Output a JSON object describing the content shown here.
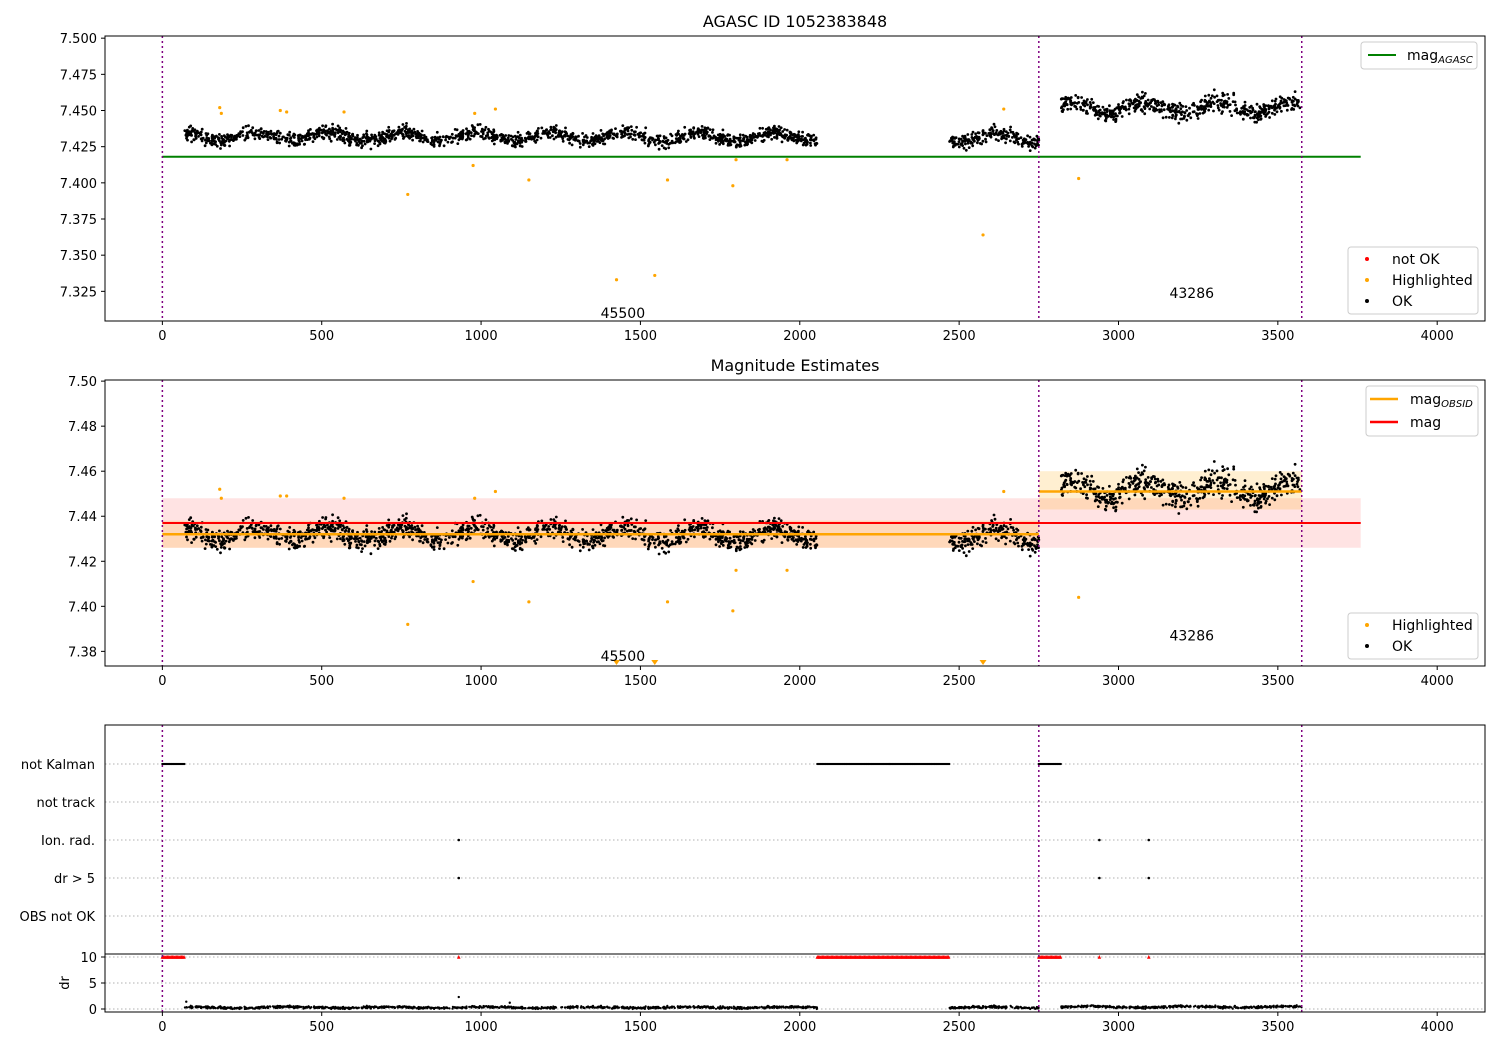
{
  "figure": {
    "colors": {
      "black": "#000000",
      "orange": "#ffa500",
      "red": "#ff0000",
      "green": "#008000",
      "purple": "#800080",
      "grid": "#b0b0b0"
    },
    "panels": [
      {
        "id": "agasc",
        "title": "AGASC ID 1052383848",
        "legend_top": [
          {
            "label": "mag",
            "sub": "AGASC",
            "color": "#008000"
          }
        ],
        "legend_bottom": [
          {
            "label": "not OK",
            "color": "#ff0000"
          },
          {
            "label": "Highlighted",
            "color": "#ffa500"
          },
          {
            "label": "OK",
            "color": "#000000"
          }
        ],
        "annotations": [
          {
            "text": "45500",
            "x": 1375,
            "y": 7.31
          },
          {
            "text": "43286",
            "x": 3160,
            "y": 7.324
          }
        ]
      },
      {
        "id": "estimates",
        "title": "Magnitude Estimates",
        "legend_top": [
          {
            "label": "mag",
            "sub": "OBSID",
            "color": "#ffa500"
          },
          {
            "label": "mag",
            "sub": "",
            "color": "#ff0000"
          }
        ],
        "legend_bottom": [
          {
            "label": "Highlighted",
            "color": "#ffa500"
          },
          {
            "label": "OK",
            "color": "#000000"
          }
        ],
        "annotations": [
          {
            "text": "45500",
            "x": 1375,
            "y": 7.378
          },
          {
            "text": "43286",
            "x": 3160,
            "y": 7.387
          }
        ]
      },
      {
        "id": "flags",
        "title": "",
        "flag_rows": [
          "not Kalman",
          "not track",
          "Ion. rad.",
          "dr > 5",
          "OBS not OK"
        ],
        "dr_label": "dr"
      }
    ]
  },
  "chart_data": [
    {
      "type": "scatter",
      "title": "AGASC ID 1052383848",
      "xlabel": "",
      "ylabel": "",
      "xlim": [
        -180,
        4150
      ],
      "ylim": [
        7.3045,
        7.5015
      ],
      "xticks": [
        0,
        500,
        1000,
        1500,
        2000,
        2500,
        3000,
        3500,
        4000
      ],
      "yticks": [
        7.325,
        7.35,
        7.375,
        7.4,
        7.425,
        7.45,
        7.475,
        7.5
      ],
      "vlines": [
        0,
        2750,
        3575
      ],
      "hlines": [
        {
          "name": "mag_AGASC",
          "y": 7.418,
          "x": [
            0,
            3760
          ]
        }
      ],
      "series": [
        {
          "name": "OK",
          "note": "dense point cloud; mean level per segment",
          "segments": [
            {
              "x": [
                70,
                2055
              ],
              "mean": 7.432,
              "spread": 0.006
            },
            {
              "x": [
                2470,
                2750
              ],
              "mean": 7.431,
              "spread": 0.006
            },
            {
              "x": [
                2820,
                3570
              ],
              "mean": 7.452,
              "spread": 0.008
            }
          ]
        },
        {
          "name": "Highlighted",
          "x": [
            180,
            185,
            370,
            390,
            570,
            770,
            975,
            980,
            1045,
            1150,
            1425,
            1545,
            1585,
            1790,
            1800,
            1960,
            2575,
            2640,
            2875
          ],
          "y": [
            7.452,
            7.448,
            7.45,
            7.449,
            7.449,
            7.392,
            7.412,
            7.448,
            7.451,
            7.402,
            7.333,
            7.336,
            7.402,
            7.398,
            7.416,
            7.416,
            7.364,
            7.451,
            7.403
          ]
        },
        {
          "name": "not OK",
          "x": [],
          "y": []
        }
      ]
    },
    {
      "type": "scatter",
      "title": "Magnitude Estimates",
      "xlabel": "",
      "ylabel": "",
      "xlim": [
        -180,
        4150
      ],
      "ylim": [
        7.3735,
        7.5005
      ],
      "xticks": [
        0,
        500,
        1000,
        1500,
        2000,
        2500,
        3000,
        3500,
        4000
      ],
      "yticks": [
        7.38,
        7.4,
        7.42,
        7.44,
        7.46,
        7.48,
        7.5
      ],
      "vlines": [
        0,
        2750,
        3575
      ],
      "lines": [
        {
          "name": "mag_OBSID",
          "color": "#ffa500",
          "segments": [
            {
              "x": [
                0,
                2750
              ],
              "y": 7.432,
              "band": [
                7.426,
                7.438
              ]
            },
            {
              "x": [
                2750,
                3575
              ],
              "y": 7.451,
              "band": [
                7.443,
                7.46
              ]
            }
          ]
        },
        {
          "name": "mag",
          "color": "#ff0000",
          "segments": [
            {
              "x": [
                0,
                3760
              ],
              "y": 7.437,
              "band": [
                7.426,
                7.448
              ]
            }
          ]
        }
      ],
      "series": [
        {
          "name": "OK",
          "note": "dense point cloud; mean level per segment",
          "segments": [
            {
              "x": [
                70,
                2055
              ],
              "mean": 7.432,
              "spread": 0.006
            },
            {
              "x": [
                2470,
                2750
              ],
              "mean": 7.431,
              "spread": 0.006
            },
            {
              "x": [
                2820,
                3570
              ],
              "mean": 7.452,
              "spread": 0.008
            }
          ]
        },
        {
          "name": "Highlighted",
          "x": [
            180,
            185,
            370,
            390,
            570,
            770,
            975,
            980,
            1045,
            1150,
            1585,
            1790,
            1800,
            1960,
            2640,
            2875
          ],
          "y": [
            7.452,
            7.448,
            7.449,
            7.449,
            7.448,
            7.392,
            7.411,
            7.448,
            7.451,
            7.402,
            7.402,
            7.398,
            7.416,
            7.416,
            7.451,
            7.404
          ]
        },
        {
          "name": "Highlighted (below range)",
          "x": [
            1425,
            1545,
            2575
          ]
        }
      ]
    },
    {
      "type": "scatter",
      "title": "",
      "xlabel": "",
      "ylabel": "dr",
      "xlim": [
        -180,
        4150
      ],
      "flag_rows": [
        "not Kalman",
        "not track",
        "Ion. rad.",
        "dr > 5",
        "OBS not OK"
      ],
      "flags": {
        "not Kalman": [
          [
            0,
            70
          ],
          [
            2055,
            2470
          ],
          [
            2750,
            2820
          ]
        ],
        "not track": [],
        "Ion. rad.": [
          930,
          2940,
          3095
        ],
        "dr > 5": [
          930,
          2940,
          3095
        ],
        "OBS not OK": []
      },
      "dr_yticks": [
        0,
        5,
        10
      ],
      "dr_ylim": [
        -0.5,
        10.5
      ],
      "dr_clipped_at_10": [
        [
          0,
          70
        ],
        [
          930,
          930
        ],
        [
          2055,
          2470
        ],
        [
          2750,
          2820
        ],
        [
          2940,
          2940
        ],
        [
          3095,
          3095
        ]
      ],
      "dr_series": {
        "note": "dense near zero",
        "segments": [
          {
            "x": [
              70,
              2055
            ],
            "mean": 0.3
          },
          {
            "x": [
              2470,
              2750
            ],
            "mean": 0.3
          },
          {
            "x": [
              2820,
              3575
            ],
            "mean": 0.4
          }
        ],
        "outliers": {
          "x": [
            75,
            930,
            1090
          ],
          "y": [
            1.4,
            2.3,
            1.2
          ]
        }
      }
    }
  ]
}
